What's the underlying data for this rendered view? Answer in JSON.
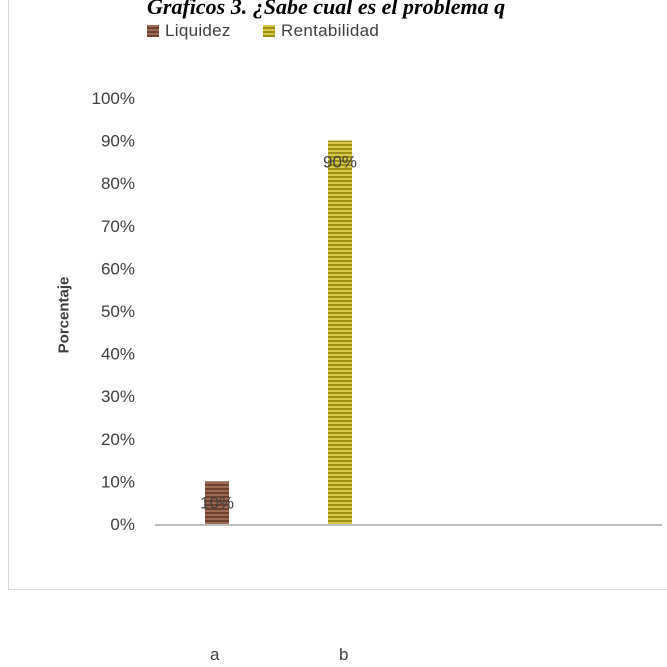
{
  "chart_data": {
    "type": "bar",
    "title": "Graficos 3. ¿Sabe cual es el problema q",
    "ylabel": "Porcentaje",
    "xlabel": "",
    "ylim": [
      0,
      100
    ],
    "y_ticks": [
      "0%",
      "10%",
      "20%",
      "30%",
      "40%",
      "50%",
      "60%",
      "70%",
      "80%",
      "90%",
      "100%"
    ],
    "categories": [
      "a",
      "b"
    ],
    "series": [
      {
        "name": "Liquidez",
        "values": [
          10,
          null
        ],
        "color": "#8b5a45",
        "data_labels": [
          "10%",
          null
        ]
      },
      {
        "name": "Rentabilidad",
        "values": [
          null,
          90
        ],
        "color": "#b5a81c",
        "data_labels": [
          null,
          "90%"
        ]
      }
    ],
    "legend_position": "top-left",
    "grid": false
  }
}
